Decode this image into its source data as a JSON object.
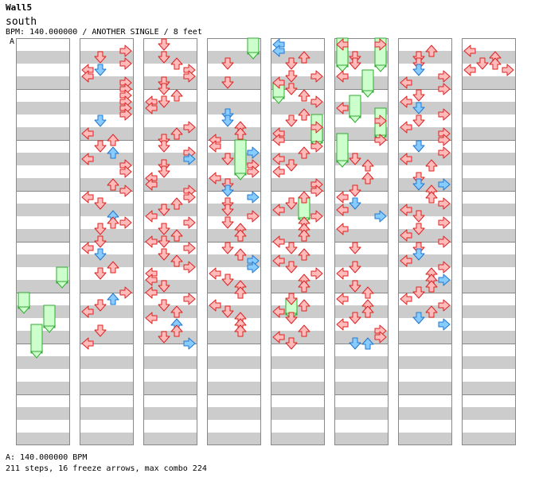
{
  "header": {
    "title": "Wall5",
    "artist": "south",
    "info": "BPM: 140.000000 / ANOTHER SINGLE / 8 feet",
    "bpm_marker": "A"
  },
  "footer": {
    "bpm_legend": "A: 140.000000 BPM",
    "stats": "211 steps, 16 freeze arrows, max combo 224"
  },
  "colors": {
    "stripe": "#cccccc",
    "border": "#888888",
    "step": "#ffbbbb",
    "step_stroke": "#dd2222",
    "sixteenth": "#88ccff",
    "sixteenth_stroke": "#2277cc",
    "freeze": "#ccffcc",
    "freeze_stroke": "#33aa33"
  },
  "chart_data": {
    "type": "step-chart",
    "panels": [
      "left",
      "down",
      "up",
      "right"
    ],
    "measures_per_column": 8,
    "columns": 8,
    "arrows": [
      [
        1,
        1,
        3,
        "r"
      ],
      [
        1,
        2,
        1,
        "r"
      ],
      [
        1,
        3,
        3,
        "r"
      ],
      [
        1,
        4,
        0,
        "r"
      ],
      [
        1,
        4,
        1,
        "b"
      ],
      [
        1,
        5,
        0,
        "r"
      ],
      [
        1,
        6,
        3,
        "r"
      ],
      [
        1,
        7,
        3,
        "r"
      ],
      [
        1,
        8,
        3,
        "r"
      ],
      [
        1,
        9,
        3,
        "r"
      ],
      [
        1,
        10,
        3,
        "r"
      ],
      [
        1,
        11,
        3,
        "r"
      ],
      [
        1,
        12,
        1,
        "b"
      ],
      [
        1,
        14,
        0,
        "r"
      ],
      [
        1,
        15,
        2,
        "r"
      ],
      [
        1,
        16,
        1,
        "r"
      ],
      [
        1,
        17,
        2,
        "b"
      ],
      [
        1,
        18,
        0,
        "r"
      ],
      [
        1,
        19,
        3,
        "r"
      ],
      [
        1,
        20,
        3,
        "r"
      ],
      [
        1,
        22,
        2,
        "r"
      ],
      [
        1,
        23,
        3,
        "r"
      ],
      [
        1,
        24,
        0,
        "r"
      ],
      [
        1,
        25,
        1,
        "r"
      ],
      [
        1,
        27,
        2,
        "b"
      ],
      [
        1,
        28,
        3,
        "r"
      ],
      [
        1,
        28,
        2,
        "r"
      ],
      [
        1,
        29,
        1,
        "r"
      ],
      [
        1,
        31,
        1,
        "r"
      ],
      [
        1,
        32,
        0,
        "r"
      ],
      [
        1,
        33,
        1,
        "b"
      ],
      [
        1,
        35,
        2,
        "r"
      ],
      [
        1,
        36,
        1,
        "r"
      ],
      [
        1,
        39,
        3,
        "r"
      ],
      [
        1,
        40,
        2,
        "b"
      ],
      [
        1,
        41,
        1,
        "r"
      ],
      [
        1,
        42,
        0,
        "r"
      ],
      [
        1,
        45,
        1,
        "r"
      ],
      [
        1,
        47,
        0,
        "r"
      ],
      [
        2,
        0,
        1,
        "r"
      ],
      [
        2,
        2,
        1,
        "r"
      ],
      [
        2,
        3,
        2,
        "r"
      ],
      [
        2,
        4,
        3,
        "r"
      ],
      [
        2,
        5,
        3,
        "r"
      ],
      [
        2,
        6,
        1,
        "r"
      ],
      [
        2,
        7,
        1,
        "r"
      ],
      [
        2,
        8,
        2,
        "r"
      ],
      [
        2,
        9,
        0,
        "r"
      ],
      [
        2,
        9,
        1,
        "r"
      ],
      [
        2,
        10,
        0,
        "r"
      ],
      [
        2,
        13,
        3,
        "r"
      ],
      [
        2,
        14,
        2,
        "r"
      ],
      [
        2,
        15,
        1,
        "r"
      ],
      [
        2,
        16,
        1,
        "r"
      ],
      [
        2,
        17,
        3,
        "r"
      ],
      [
        2,
        18,
        3,
        "b"
      ],
      [
        2,
        19,
        1,
        "r"
      ],
      [
        2,
        20,
        1,
        "r"
      ],
      [
        2,
        21,
        0,
        "r"
      ],
      [
        2,
        22,
        0,
        "r"
      ],
      [
        2,
        23,
        3,
        "r"
      ],
      [
        2,
        24,
        3,
        "r"
      ],
      [
        2,
        25,
        2,
        "r"
      ],
      [
        2,
        26,
        1,
        "r"
      ],
      [
        2,
        27,
        0,
        "r"
      ],
      [
        2,
        28,
        3,
        "r"
      ],
      [
        2,
        29,
        1,
        "r"
      ],
      [
        2,
        30,
        2,
        "r"
      ],
      [
        2,
        31,
        0,
        "r"
      ],
      [
        2,
        31,
        1,
        "r"
      ],
      [
        2,
        32,
        3,
        "r"
      ],
      [
        2,
        33,
        1,
        "r"
      ],
      [
        2,
        34,
        2,
        "r"
      ],
      [
        2,
        35,
        3,
        "r"
      ],
      [
        2,
        36,
        0,
        "r"
      ],
      [
        2,
        37,
        0,
        "r"
      ],
      [
        2,
        38,
        1,
        "r"
      ],
      [
        2,
        39,
        0,
        "r"
      ],
      [
        2,
        40,
        3,
        "r"
      ],
      [
        2,
        41,
        1,
        "r"
      ],
      [
        2,
        42,
        2,
        "r"
      ],
      [
        2,
        43,
        0,
        "r"
      ],
      [
        2,
        44,
        2,
        "b"
      ],
      [
        2,
        45,
        2,
        "r"
      ],
      [
        2,
        46,
        1,
        "r"
      ],
      [
        2,
        47,
        3,
        "b"
      ],
      [
        3,
        3,
        1,
        "r"
      ],
      [
        3,
        6,
        1,
        "r"
      ],
      [
        3,
        11,
        1,
        "b"
      ],
      [
        3,
        12,
        1,
        "b"
      ],
      [
        3,
        13,
        2,
        "r"
      ],
      [
        3,
        14,
        2,
        "r"
      ],
      [
        3,
        15,
        0,
        "r"
      ],
      [
        3,
        16,
        0,
        "r"
      ],
      [
        3,
        17,
        3,
        "b"
      ],
      [
        3,
        18,
        1,
        "r"
      ],
      [
        3,
        19,
        3,
        "r"
      ],
      [
        3,
        20,
        3,
        "r"
      ],
      [
        3,
        21,
        0,
        "r"
      ],
      [
        3,
        22,
        1,
        "r"
      ],
      [
        3,
        23,
        1,
        "b"
      ],
      [
        3,
        24,
        3,
        "b"
      ],
      [
        3,
        25,
        1,
        "r"
      ],
      [
        3,
        26,
        1,
        "r"
      ],
      [
        3,
        27,
        3,
        "r"
      ],
      [
        3,
        28,
        1,
        "r"
      ],
      [
        3,
        29,
        2,
        "r"
      ],
      [
        3,
        30,
        2,
        "r"
      ],
      [
        3,
        32,
        1,
        "r"
      ],
      [
        3,
        33,
        2,
        "r"
      ],
      [
        3,
        34,
        3,
        "b"
      ],
      [
        3,
        35,
        3,
        "b"
      ],
      [
        3,
        36,
        0,
        "r"
      ],
      [
        3,
        37,
        1,
        "r"
      ],
      [
        3,
        38,
        2,
        "r"
      ],
      [
        3,
        39,
        2,
        "r"
      ],
      [
        3,
        41,
        0,
        "r"
      ],
      [
        3,
        42,
        1,
        "r"
      ],
      [
        3,
        43,
        2,
        "r"
      ],
      [
        3,
        44,
        2,
        "r"
      ],
      [
        3,
        45,
        2,
        "r"
      ],
      [
        4,
        0,
        0,
        "b"
      ],
      [
        4,
        1,
        0,
        "b"
      ],
      [
        4,
        2,
        2,
        "r"
      ],
      [
        4,
        3,
        1,
        "r"
      ],
      [
        4,
        5,
        1,
        "r"
      ],
      [
        4,
        5,
        3,
        "r"
      ],
      [
        4,
        6,
        0,
        "r"
      ],
      [
        4,
        7,
        1,
        "r"
      ],
      [
        4,
        8,
        2,
        "r"
      ],
      [
        4,
        9,
        3,
        "r"
      ],
      [
        4,
        11,
        2,
        "r"
      ],
      [
        4,
        12,
        1,
        "r"
      ],
      [
        4,
        13,
        3,
        "r"
      ],
      [
        4,
        14,
        0,
        "r"
      ],
      [
        4,
        15,
        0,
        "r"
      ],
      [
        4,
        16,
        3,
        "r"
      ],
      [
        4,
        17,
        2,
        "r"
      ],
      [
        4,
        18,
        0,
        "r"
      ],
      [
        4,
        19,
        1,
        "r"
      ],
      [
        4,
        20,
        0,
        "r"
      ],
      [
        4,
        22,
        3,
        "r"
      ],
      [
        4,
        23,
        3,
        "r"
      ],
      [
        4,
        24,
        2,
        "r"
      ],
      [
        4,
        25,
        1,
        "r"
      ],
      [
        4,
        26,
        0,
        "r"
      ],
      [
        4,
        27,
        3,
        "r"
      ],
      [
        4,
        28,
        2,
        "r"
      ],
      [
        4,
        29,
        2,
        "r"
      ],
      [
        4,
        30,
        2,
        "r"
      ],
      [
        4,
        31,
        0,
        "r"
      ],
      [
        4,
        32,
        1,
        "r"
      ],
      [
        4,
        33,
        2,
        "r"
      ],
      [
        4,
        34,
        0,
        "r"
      ],
      [
        4,
        35,
        1,
        "r"
      ],
      [
        4,
        36,
        3,
        "r"
      ],
      [
        4,
        37,
        2,
        "r"
      ],
      [
        4,
        38,
        2,
        "r"
      ],
      [
        4,
        40,
        1,
        "r"
      ],
      [
        4,
        41,
        2,
        "r"
      ],
      [
        4,
        42,
        0,
        "r"
      ],
      [
        4,
        43,
        1,
        "r"
      ],
      [
        4,
        45,
        2,
        "r"
      ],
      [
        4,
        46,
        0,
        "r"
      ],
      [
        4,
        47,
        1,
        "r"
      ],
      [
        5,
        0,
        0,
        "r"
      ],
      [
        5,
        0,
        3,
        "r"
      ],
      [
        5,
        2,
        1,
        "r"
      ],
      [
        5,
        3,
        1,
        "r"
      ],
      [
        5,
        5,
        0,
        "r"
      ],
      [
        5,
        10,
        0,
        "r"
      ],
      [
        5,
        12,
        3,
        "r"
      ],
      [
        5,
        15,
        3,
        "r"
      ],
      [
        5,
        18,
        1,
        "r"
      ],
      [
        5,
        19,
        2,
        "r"
      ],
      [
        5,
        21,
        2,
        "r"
      ],
      [
        5,
        23,
        1,
        "r"
      ],
      [
        5,
        24,
        0,
        "r"
      ],
      [
        5,
        25,
        1,
        "b"
      ],
      [
        5,
        26,
        0,
        "r"
      ],
      [
        5,
        27,
        3,
        "b"
      ],
      [
        5,
        29,
        0,
        "r"
      ],
      [
        5,
        32,
        1,
        "r"
      ],
      [
        5,
        35,
        1,
        "r"
      ],
      [
        5,
        36,
        0,
        "r"
      ],
      [
        5,
        38,
        1,
        "r"
      ],
      [
        5,
        39,
        2,
        "r"
      ],
      [
        5,
        40,
        0,
        "r"
      ],
      [
        5,
        41,
        2,
        "r"
      ],
      [
        5,
        42,
        2,
        "r"
      ],
      [
        5,
        43,
        1,
        "r"
      ],
      [
        5,
        44,
        0,
        "r"
      ],
      [
        5,
        45,
        3,
        "r"
      ],
      [
        5,
        46,
        3,
        "r"
      ],
      [
        5,
        47,
        1,
        "b"
      ],
      [
        5,
        47,
        2,
        "b"
      ],
      [
        6,
        1,
        2,
        "r"
      ],
      [
        6,
        2,
        1,
        "r"
      ],
      [
        6,
        3,
        1,
        "r"
      ],
      [
        6,
        4,
        1,
        "b"
      ],
      [
        6,
        5,
        3,
        "r"
      ],
      [
        6,
        6,
        0,
        "r"
      ],
      [
        6,
        7,
        3,
        "r"
      ],
      [
        6,
        8,
        1,
        "r"
      ],
      [
        6,
        9,
        0,
        "r"
      ],
      [
        6,
        10,
        1,
        "b"
      ],
      [
        6,
        11,
        3,
        "r"
      ],
      [
        6,
        12,
        1,
        "r"
      ],
      [
        6,
        13,
        0,
        "r"
      ],
      [
        6,
        14,
        3,
        "r"
      ],
      [
        6,
        15,
        3,
        "r"
      ],
      [
        6,
        16,
        1,
        "b"
      ],
      [
        6,
        17,
        3,
        "r"
      ],
      [
        6,
        18,
        0,
        "r"
      ],
      [
        6,
        19,
        2,
        "r"
      ],
      [
        6,
        21,
        1,
        "r"
      ],
      [
        6,
        22,
        1,
        "b"
      ],
      [
        6,
        22,
        3,
        "b"
      ],
      [
        6,
        23,
        2,
        "r"
      ],
      [
        6,
        24,
        2,
        "r"
      ],
      [
        6,
        25,
        3,
        "r"
      ],
      [
        6,
        26,
        0,
        "r"
      ],
      [
        6,
        27,
        1,
        "r"
      ],
      [
        6,
        28,
        3,
        "r"
      ],
      [
        6,
        29,
        1,
        "r"
      ],
      [
        6,
        30,
        0,
        "r"
      ],
      [
        6,
        31,
        3,
        "r"
      ],
      [
        6,
        32,
        1,
        "r"
      ],
      [
        6,
        33,
        1,
        "b"
      ],
      [
        6,
        34,
        0,
        "r"
      ],
      [
        6,
        35,
        3,
        "r"
      ],
      [
        6,
        36,
        2,
        "r"
      ],
      [
        6,
        37,
        2,
        "r"
      ],
      [
        6,
        37,
        3,
        "b"
      ],
      [
        6,
        38,
        2,
        "r"
      ],
      [
        6,
        39,
        1,
        "r"
      ],
      [
        6,
        40,
        0,
        "r"
      ],
      [
        6,
        41,
        3,
        "r"
      ],
      [
        6,
        42,
        2,
        "r"
      ],
      [
        6,
        43,
        1,
        "b"
      ],
      [
        6,
        44,
        3,
        "b"
      ],
      [
        7,
        1,
        0,
        "r"
      ],
      [
        7,
        2,
        2,
        "r"
      ],
      [
        7,
        3,
        1,
        "r"
      ],
      [
        7,
        3,
        2,
        "r"
      ],
      [
        7,
        4,
        0,
        "r"
      ],
      [
        7,
        4,
        3,
        "r"
      ]
    ],
    "freezes": [
      [
        0,
        36,
        3,
        38
      ],
      [
        0,
        40,
        0,
        42
      ],
      [
        0,
        42,
        2,
        45
      ],
      [
        0,
        45,
        1,
        49
      ],
      [
        3,
        0,
        3,
        2
      ],
      [
        3,
        16,
        2,
        21
      ],
      [
        4,
        7,
        0,
        9
      ],
      [
        4,
        12,
        3,
        16
      ],
      [
        4,
        25,
        2,
        28
      ],
      [
        4,
        41,
        1,
        43
      ],
      [
        5,
        0,
        0,
        4
      ],
      [
        5,
        0,
        3,
        4
      ],
      [
        5,
        5,
        2,
        8
      ],
      [
        5,
        9,
        1,
        12
      ],
      [
        5,
        11,
        3,
        15
      ],
      [
        5,
        15,
        0,
        19
      ]
    ]
  }
}
